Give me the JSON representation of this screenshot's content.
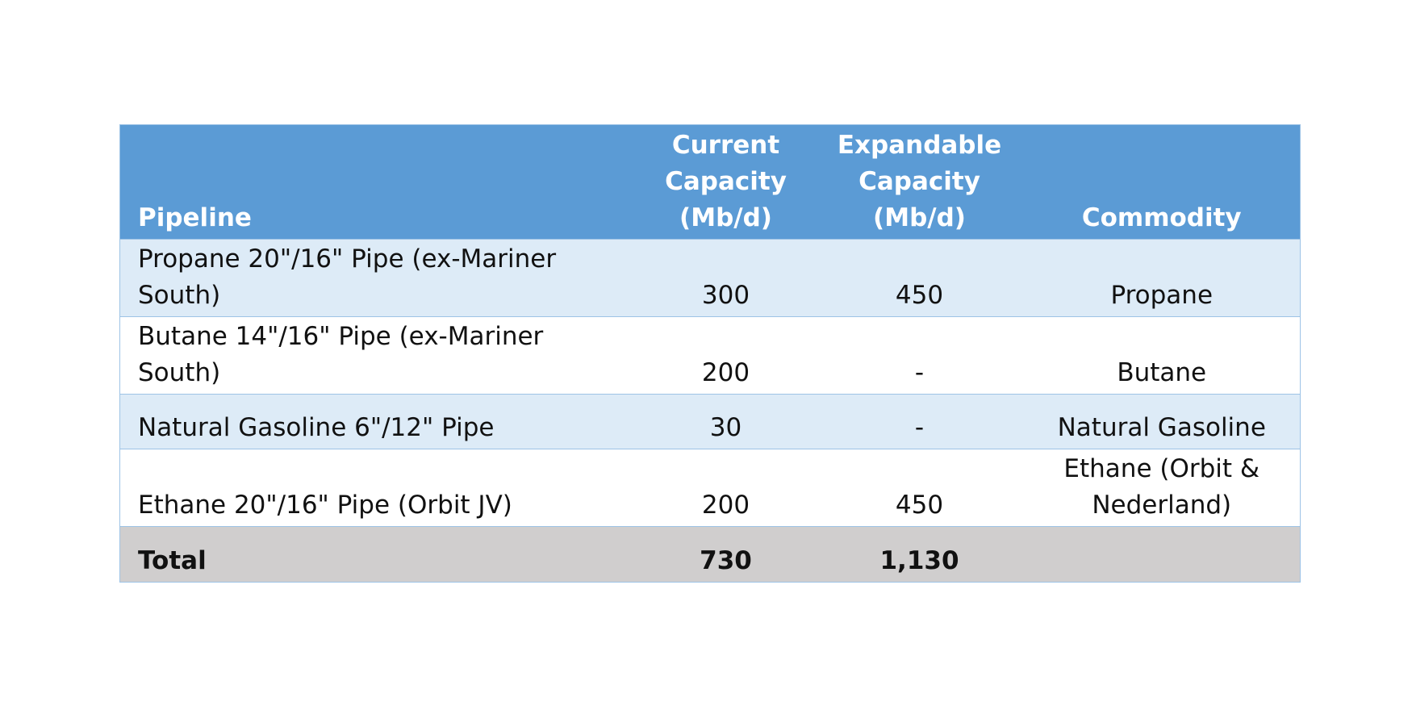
{
  "table": {
    "header": [
      "Pipeline",
      "Current Capacity (Mb/d)",
      "Expandable Capacity (Mb/d)",
      "Commodity"
    ],
    "rows": [
      [
        "Propane 20\"/16\" Pipe (ex-Mariner South)",
        "300",
        "450",
        "Propane"
      ],
      [
        "Butane 14\"/16\" Pipe (ex-Mariner South)",
        "200",
        "-",
        "Butane"
      ],
      [
        "Natural Gasoline 6\"/12\" Pipe",
        "30",
        "-",
        "Natural Gasoline"
      ],
      [
        "Ethane 20\"/16\" Pipe (Orbit JV)",
        "200",
        "450",
        "Ethane (Orbit & Nederland)"
      ]
    ],
    "total": [
      "Total",
      "730",
      "1,130"
    ]
  }
}
